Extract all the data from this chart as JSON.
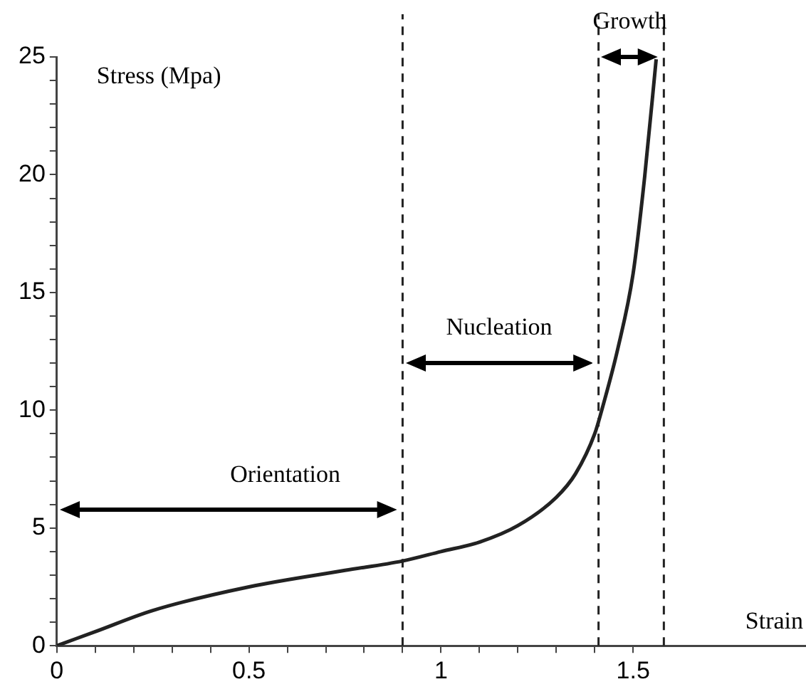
{
  "chart_data": {
    "type": "line",
    "xlabel": "Strain",
    "ylabel": "Stress (Mpa)",
    "x": [
      0,
      0.1,
      0.25,
      0.5,
      0.75,
      0.9,
      1.0,
      1.1,
      1.2,
      1.3,
      1.35,
      1.4,
      1.42,
      1.46,
      1.5,
      1.53,
      1.56
    ],
    "series": [
      {
        "color": "#222222",
        "values": [
          0,
          0.6,
          1.5,
          2.5,
          3.2,
          3.6,
          4.0,
          4.4,
          5.1,
          6.3,
          7.3,
          9.0,
          10.1,
          12.6,
          15.8,
          19.9,
          24.9
        ]
      }
    ],
    "xlim": [
      0,
      1.95
    ],
    "ylim": [
      0,
      25
    ],
    "xticks": [
      0,
      {
        "value": 0.1,
        "label": null
      },
      {
        "value": 0.2,
        "label": null
      },
      {
        "value": 0.3,
        "label": null
      },
      {
        "value": 0.4,
        "label": null
      },
      0.5,
      {
        "value": 0.6,
        "label": null
      },
      {
        "value": 0.7,
        "label": null
      },
      {
        "value": 0.8,
        "label": null
      },
      {
        "value": 0.9,
        "label": null
      },
      1,
      {
        "value": 1.1,
        "label": null
      },
      {
        "value": 1.2,
        "label": null
      },
      {
        "value": 1.3,
        "label": null
      },
      {
        "value": 1.4,
        "label": null
      },
      1.5
    ],
    "yticks": [
      0,
      {
        "value": 1,
        "label": null
      },
      {
        "value": 2,
        "label": null
      },
      {
        "value": 3,
        "label": null
      },
      {
        "value": 4,
        "label": null
      },
      5,
      {
        "value": 6,
        "label": null
      },
      {
        "value": 7,
        "label": null
      },
      {
        "value": 8,
        "label": null
      },
      {
        "value": 9,
        "label": null
      },
      10,
      {
        "value": 11,
        "label": null
      },
      {
        "value": 12,
        "label": null
      },
      {
        "value": 13,
        "label": null
      },
      {
        "value": 14,
        "label": null
      },
      15,
      {
        "value": 16,
        "label": null
      },
      {
        "value": 17,
        "label": null
      },
      {
        "value": 18,
        "label": null
      },
      {
        "value": 19,
        "label": null
      },
      20,
      {
        "value": 21,
        "label": null
      },
      {
        "value": 22,
        "label": null
      },
      {
        "value": 23,
        "label": null
      },
      {
        "value": 24,
        "label": null
      },
      25
    ],
    "ref_lines": [
      {
        "axis": "x",
        "value": 0.9,
        "color": "#222222",
        "line_style": "dashed"
      },
      {
        "axis": "x",
        "value": 1.41,
        "color": "#222222",
        "line_style": "dashed"
      },
      {
        "axis": "x",
        "value": 1.58,
        "color": "#222222",
        "line_style": "dashed"
      }
    ],
    "annotations": [
      "Orientation",
      "Nucleation",
      "Growth"
    ],
    "grid": false,
    "legend": false,
    "marker": "none",
    "line_style": "solid"
  }
}
